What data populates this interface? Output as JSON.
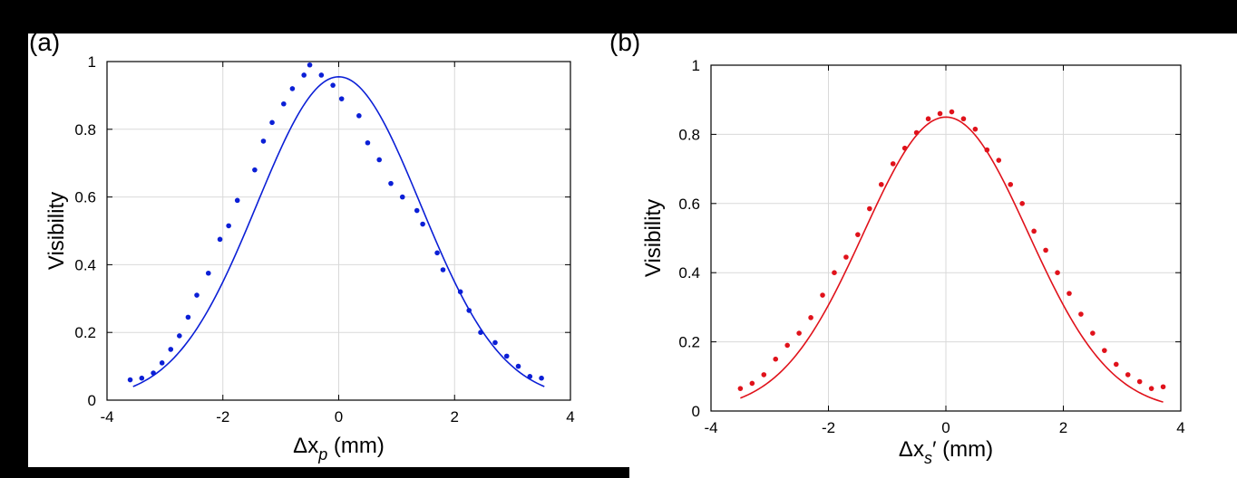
{
  "chart_data": [
    {
      "type": "scatter",
      "panel_label": "(a)",
      "xlabel": {
        "symbol": "Δx",
        "subscript": "p",
        "prime": "",
        "unit": "(mm)"
      },
      "ylabel": "Visibility",
      "xlim": [
        -4,
        4
      ],
      "ylim": [
        0,
        1
      ],
      "xticks": [
        -4,
        -2,
        0,
        2,
        4
      ],
      "yticks": [
        0,
        0.2,
        0.4,
        0.6,
        0.8,
        1
      ],
      "ytick_labels": [
        "0",
        "0.2",
        "0.4",
        "0.6",
        "0.8",
        "1"
      ],
      "grid": true,
      "color": "#0b1fd6",
      "series": [
        {
          "x": [
            -3.6,
            -3.4,
            -3.2,
            -3.05,
            -2.9,
            -2.75,
            -2.6,
            -2.45,
            -2.25,
            -2.05,
            -1.9,
            -1.75,
            -1.45,
            -1.3,
            -1.15,
            -0.95,
            -0.8,
            -0.6,
            -0.5,
            -0.3,
            -0.1,
            0.05,
            0.35,
            0.5,
            0.7,
            0.9,
            1.1,
            1.35,
            1.45,
            1.7,
            1.8,
            2.1,
            2.25,
            2.45,
            2.7,
            2.9,
            3.1,
            3.3,
            3.5
          ],
          "y": [
            0.06,
            0.065,
            0.08,
            0.11,
            0.15,
            0.19,
            0.245,
            0.31,
            0.375,
            0.475,
            0.515,
            0.59,
            0.68,
            0.765,
            0.82,
            0.875,
            0.92,
            0.96,
            0.99,
            0.96,
            0.93,
            0.89,
            0.84,
            0.76,
            0.71,
            0.64,
            0.6,
            0.56,
            0.52,
            0.435,
            0.385,
            0.32,
            0.265,
            0.2,
            0.17,
            0.13,
            0.1,
            0.07,
            0.065
          ]
        }
      ],
      "fit": {
        "x0": -3.55,
        "x1": 3.55,
        "amplitude": 0.955,
        "center": 0,
        "sigma": 1.41
      }
    },
    {
      "type": "scatter",
      "panel_label": "(b)",
      "xlabel": {
        "symbol": "Δx",
        "subscript": "s",
        "prime": "′",
        "unit": "(mm)"
      },
      "ylabel": "Visibility",
      "xlim": [
        -4,
        4
      ],
      "ylim": [
        0,
        1
      ],
      "xticks": [
        -4,
        -2,
        0,
        2,
        4
      ],
      "yticks": [
        0,
        0.2,
        0.4,
        0.6,
        0.8,
        1
      ],
      "ytick_labels": [
        "0",
        "0.2",
        "0.4",
        "0.6",
        "0.8",
        "1"
      ],
      "grid": true,
      "color": "#e0121b",
      "series": [
        {
          "x": [
            -3.5,
            -3.3,
            -3.1,
            -2.9,
            -2.7,
            -2.5,
            -2.3,
            -2.1,
            -1.9,
            -1.7,
            -1.5,
            -1.3,
            -1.1,
            -0.9,
            -0.7,
            -0.5,
            -0.3,
            -0.1,
            0.1,
            0.3,
            0.5,
            0.7,
            0.9,
            1.1,
            1.3,
            1.5,
            1.7,
            1.9,
            2.1,
            2.3,
            2.5,
            2.7,
            2.9,
            3.1,
            3.3,
            3.5,
            3.7
          ],
          "y": [
            0.065,
            0.08,
            0.105,
            0.15,
            0.19,
            0.225,
            0.27,
            0.335,
            0.4,
            0.445,
            0.51,
            0.585,
            0.655,
            0.715,
            0.76,
            0.805,
            0.845,
            0.86,
            0.865,
            0.845,
            0.815,
            0.755,
            0.725,
            0.655,
            0.6,
            0.52,
            0.465,
            0.4,
            0.34,
            0.28,
            0.225,
            0.175,
            0.135,
            0.105,
            0.085,
            0.065,
            0.07
          ]
        }
      ],
      "fit": {
        "x0": -3.5,
        "x1": 3.7,
        "amplitude": 0.85,
        "center": 0,
        "sigma": 1.4
      }
    }
  ]
}
